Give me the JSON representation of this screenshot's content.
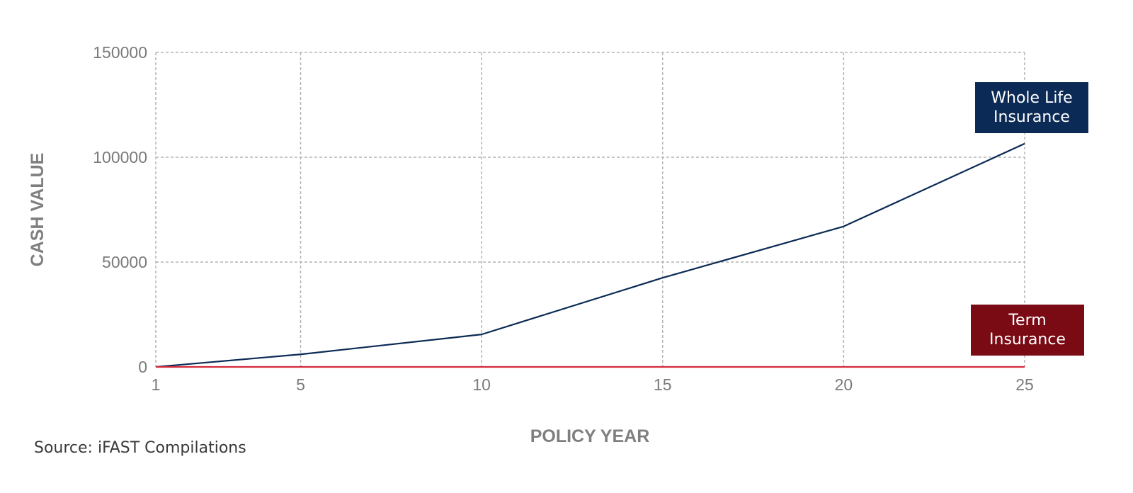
{
  "chart_data": {
    "type": "line",
    "xlabel": "POLICY YEAR",
    "ylabel": "CASH VALUE",
    "x": [
      1,
      5,
      10,
      15,
      20,
      25
    ],
    "x_ticks": [
      "1",
      "5",
      "10",
      "15",
      "20",
      "25"
    ],
    "y_ticks": [
      "0",
      "50000",
      "100000",
      "150000"
    ],
    "xlim": [
      1,
      25
    ],
    "ylim": [
      0,
      150000
    ],
    "grid": true,
    "series": [
      {
        "name": "Whole Life Insurance",
        "color": "#0b2a55",
        "label_bg": "#0b2a55",
        "values": [
          0,
          6000,
          15500,
          42500,
          67000,
          106500
        ]
      },
      {
        "name": "Term Insurance",
        "color": "#d42a3a",
        "label_bg": "#7a0a14",
        "values": [
          0,
          0,
          0,
          0,
          0,
          0
        ]
      }
    ]
  },
  "source": "Source: iFAST Compilations"
}
